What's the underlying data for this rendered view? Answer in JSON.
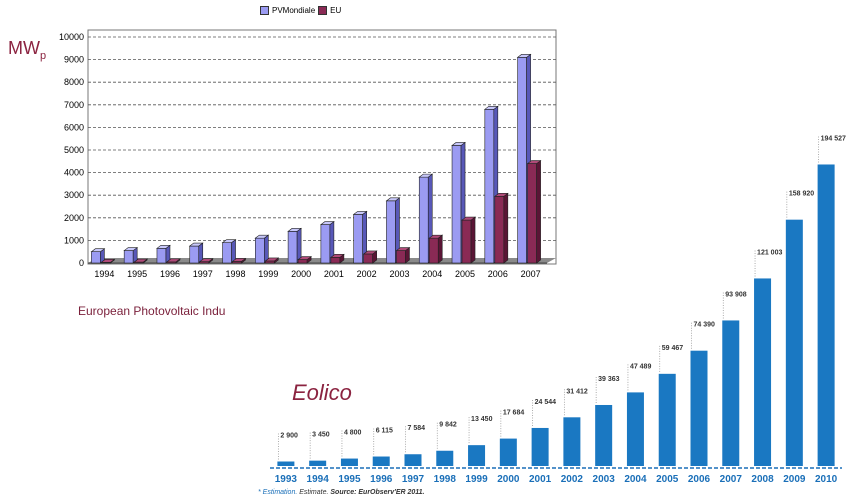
{
  "pv": {
    "unit_label": "MW",
    "unit_sub": "p",
    "caption": "European Photovoltaic Indu",
    "colors": {
      "world": "#9b9bf2",
      "world_side": "#5858b8",
      "eu": "#8a2a55",
      "eu_side": "#5a1535",
      "floor": "#8a8a8a"
    },
    "chart_data": {
      "type": "bar",
      "categories": [
        "1994",
        "1995",
        "1996",
        "1997",
        "1998",
        "1999",
        "2000",
        "2001",
        "2002",
        "2003",
        "2004",
        "2005",
        "2006",
        "2007"
      ],
      "series": [
        {
          "name": "PVMondiale",
          "values": [
            500,
            550,
            650,
            750,
            900,
            1100,
            1400,
            1700,
            2150,
            2750,
            3800,
            5200,
            6800,
            9100
          ]
        },
        {
          "name": "EU",
          "values": [
            30,
            40,
            50,
            60,
            70,
            90,
            150,
            250,
            400,
            550,
            1100,
            1900,
            2950,
            4400
          ]
        }
      ],
      "ylim": [
        0,
        10000
      ],
      "yticks": [
        0,
        1000,
        2000,
        3000,
        4000,
        5000,
        6000,
        7000,
        8000,
        9000,
        10000
      ],
      "grid": true,
      "legend": "top"
    }
  },
  "wind": {
    "title": "Eolico",
    "note_estimation": "* Estimation.",
    "note_rest": " Estimate. ",
    "note_source": "Source: EurObserv'ER 2011.",
    "colors": {
      "bar": "#1a78c2",
      "label": "#333333",
      "axis": "#1a6fb8",
      "year": "#1a6fb8"
    },
    "chart_data": {
      "type": "bar",
      "categories": [
        "1993",
        "1994",
        "1995",
        "1996",
        "1997",
        "1998",
        "1999",
        "2000",
        "2001",
        "2002",
        "2003",
        "2004",
        "2005",
        "2006",
        "2007",
        "2008",
        "2009",
        "2010"
      ],
      "values": [
        2900,
        3450,
        4800,
        6115,
        7584,
        9842,
        13450,
        17684,
        24544,
        31412,
        39363,
        47489,
        59467,
        74390,
        93908,
        121003,
        158920,
        194527
      ],
      "labels": [
        "2 900",
        "3 450",
        "4 800",
        "6 115",
        "7 584",
        "9 842",
        "13 450",
        "17 684",
        "24 544",
        "31 412",
        "39 363",
        "47 489",
        "59 467",
        "74 390",
        "93 908",
        "121 003",
        "158 920",
        "194 527"
      ],
      "ylim": [
        0,
        200000
      ]
    }
  }
}
